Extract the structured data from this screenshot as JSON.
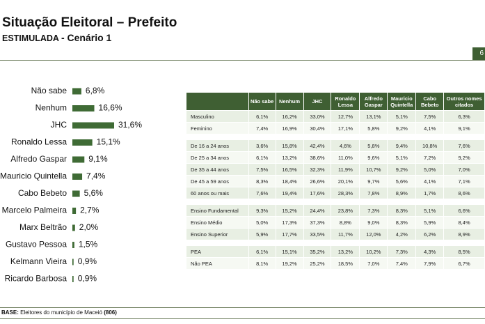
{
  "header": {
    "title": "Situação Eleitoral – Prefeito",
    "subtitle_lead": "ESTIMULADA",
    "subtitle": "- Cenário 1",
    "page_number": "6"
  },
  "chart_data": {
    "type": "bar",
    "orientation": "horizontal",
    "color": "#3f6b35",
    "categories": [
      "Não sabe",
      "Nenhum",
      "JHC",
      "Ronaldo Lessa",
      "Alfredo Gaspar",
      "Mauricio Quintella",
      "Cabo Bebeto",
      "Marcelo Palmeira",
      "Marx Beltrão",
      "Gustavo Pessoa",
      "Kelmann Vieira",
      "Ricardo Barbosa"
    ],
    "values": [
      6.8,
      16.6,
      31.6,
      15.1,
      9.1,
      7.4,
      5.6,
      2.7,
      2.0,
      1.5,
      0.9,
      0.9
    ],
    "value_labels": [
      "6,8%",
      "16,6%",
      "31,6%",
      "15,1%",
      "9,1%",
      "7,4%",
      "5,6%",
      "2,7%",
      "2,0%",
      "1,5%",
      "0,9%",
      "0,9%"
    ]
  },
  "table": {
    "columns": [
      "Não sabe",
      "Nenhum",
      "JHC",
      "Ronaldo Lessa",
      "Alfredo Gaspar",
      "Mauricio Quintella",
      "Cabo Bebeto",
      "Outros nomes citados"
    ],
    "groups": [
      {
        "rows": [
          {
            "label": "Masculino",
            "cells": [
              "6,1%",
              "16,2%",
              "33,0%",
              "12,7%",
              "13,1%",
              "5,1%",
              "7,5%",
              "6,3%"
            ]
          },
          {
            "label": "Feminino",
            "cells": [
              "7,4%",
              "16,9%",
              "30,4%",
              "17,1%",
              "5,8%",
              "9,2%",
              "4,1%",
              "9,1%"
            ]
          }
        ]
      },
      {
        "rows": [
          {
            "label": "De 16 a 24 anos",
            "cells": [
              "3,6%",
              "15,8%",
              "42,4%",
              "4,6%",
              "5,8%",
              "9,4%",
              "10,8%",
              "7,6%"
            ]
          },
          {
            "label": "De 25 a 34 anos",
            "cells": [
              "6,1%",
              "13,2%",
              "38,6%",
              "11,0%",
              "9,6%",
              "5,1%",
              "7,2%",
              "9,2%"
            ]
          },
          {
            "label": "De 35 a 44 anos",
            "cells": [
              "7,5%",
              "16,5%",
              "32,3%",
              "11,9%",
              "10,7%",
              "9,2%",
              "5,0%",
              "7,0%"
            ]
          },
          {
            "label": "De 45 a 59 anos",
            "cells": [
              "8,3%",
              "18,4%",
              "26,6%",
              "20,1%",
              "9,7%",
              "5,6%",
              "4,1%",
              "7,1%"
            ]
          },
          {
            "label": "60 anos ou mais",
            "cells": [
              "7,6%",
              "19,4%",
              "17,6%",
              "28,3%",
              "7,8%",
              "8,9%",
              "1,7%",
              "8,6%"
            ]
          }
        ]
      },
      {
        "rows": [
          {
            "label": "Ensino Fundamental",
            "cells": [
              "9,3%",
              "15,2%",
              "24,4%",
              "23,8%",
              "7,3%",
              "8,3%",
              "5,1%",
              "6,6%"
            ]
          },
          {
            "label": "Ensino Médio",
            "cells": [
              "5,0%",
              "17,3%",
              "37,3%",
              "8,8%",
              "9,0%",
              "8,3%",
              "5,9%",
              "8,4%"
            ]
          },
          {
            "label": "Ensino Superior",
            "cells": [
              "5,9%",
              "17,7%",
              "33,5%",
              "11,7%",
              "12,0%",
              "4,2%",
              "6,2%",
              "8,9%"
            ]
          }
        ]
      },
      {
        "rows": [
          {
            "label": "PEA",
            "cells": [
              "6,1%",
              "15,1%",
              "35,2%",
              "13,2%",
              "10,2%",
              "7,3%",
              "4,3%",
              "8,5%"
            ]
          },
          {
            "label": "Não PEA",
            "cells": [
              "8,1%",
              "19,2%",
              "25,2%",
              "18,5%",
              "7,0%",
              "7,4%",
              "7,9%",
              "6,7%"
            ]
          }
        ]
      }
    ]
  },
  "base": {
    "label": "BASE:",
    "text": "Eleitores do município de Maceió",
    "n": "(806)"
  }
}
